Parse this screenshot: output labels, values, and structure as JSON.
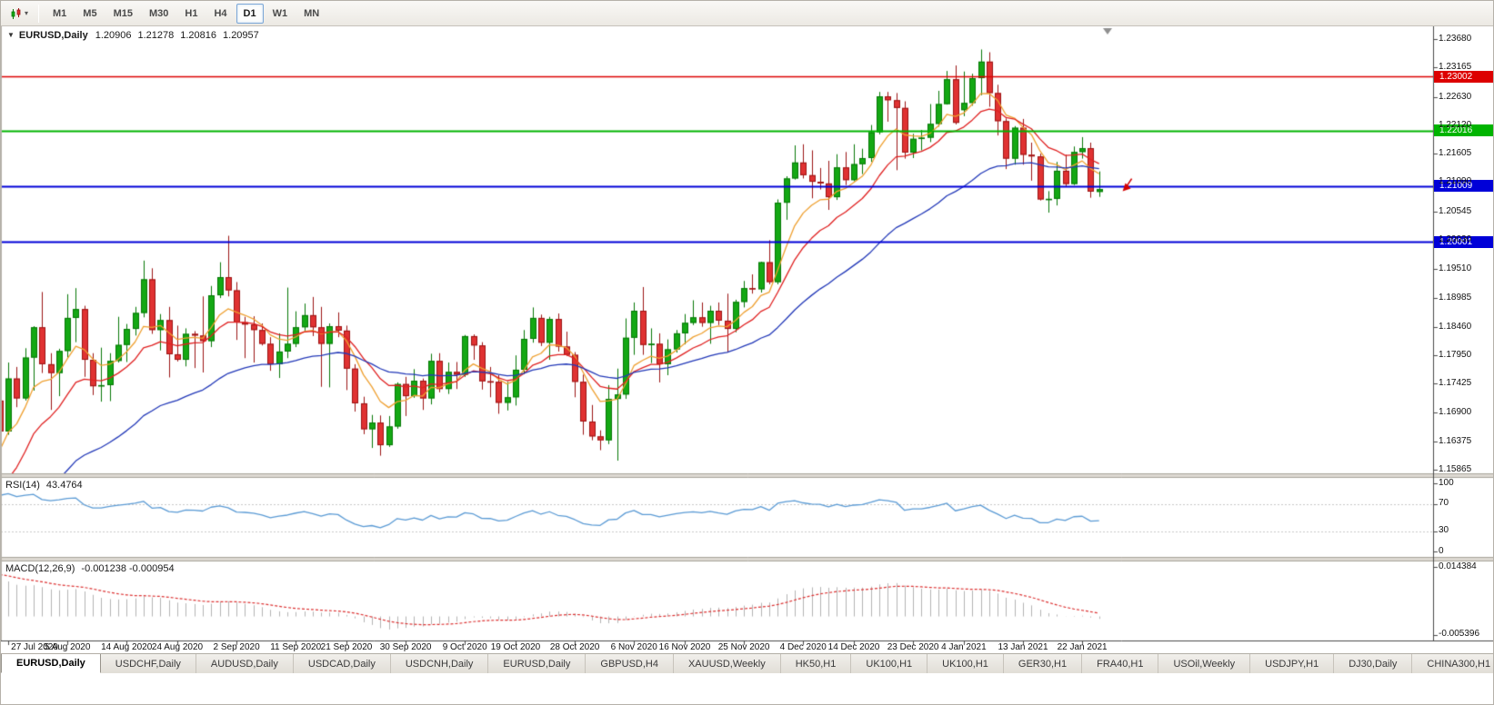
{
  "toolbar": {
    "timeframes": [
      {
        "label": "M1",
        "active": false
      },
      {
        "label": "M5",
        "active": false
      },
      {
        "label": "M15",
        "active": false
      },
      {
        "label": "M30",
        "active": false
      },
      {
        "label": "H1",
        "active": false
      },
      {
        "label": "H4",
        "active": false
      },
      {
        "label": "D1",
        "active": true
      },
      {
        "label": "W1",
        "active": false
      },
      {
        "label": "MN",
        "active": false
      }
    ]
  },
  "chart": {
    "title": {
      "symbol": "EURUSD,Daily",
      "open": "1.20906",
      "high": "1.21278",
      "low": "1.20816",
      "close": "1.20957"
    },
    "y_axis_ticks": [
      "1.23680",
      "1.23165",
      "1.22630",
      "1.22120",
      "1.21605",
      "1.21090",
      "1.20545",
      "1.20030",
      "1.19510",
      "1.18985",
      "1.18460",
      "1.17950",
      "1.17425",
      "1.16900",
      "1.16375",
      "1.15865"
    ],
    "h_lines": [
      {
        "price": 1.23002,
        "label": "1.23002",
        "color": "#dd0000",
        "width": 1.4
      },
      {
        "price": 1.22016,
        "label": "1.22016",
        "color": "#00b400",
        "width": 2
      },
      {
        "price": 1.21009,
        "label": "1.21009",
        "color": "#0000d8",
        "width": 2
      },
      {
        "price": 1.20001,
        "label": "1.20001",
        "color": "#0000d8",
        "width": 2
      }
    ],
    "x_axis_labels": [
      {
        "text": "27 Jul 2020",
        "index": 1
      },
      {
        "text": "5 Aug 2020",
        "index": 8
      },
      {
        "text": "14 Aug 2020",
        "index": 15
      },
      {
        "text": "24 Aug 2020",
        "index": 21
      },
      {
        "text": "2 Sep 2020",
        "index": 28
      },
      {
        "text": "11 Sep 2020",
        "index": 35
      },
      {
        "text": "21 Sep 2020",
        "index": 41
      },
      {
        "text": "30 Sep 2020",
        "index": 48
      },
      {
        "text": "9 Oct 2020",
        "index": 55
      },
      {
        "text": "19 Oct 2020",
        "index": 61
      },
      {
        "text": "28 Oct 2020",
        "index": 68
      },
      {
        "text": "6 Nov 2020",
        "index": 75
      },
      {
        "text": "16 Nov 2020",
        "index": 81
      },
      {
        "text": "25 Nov 2020",
        "index": 88
      },
      {
        "text": "4 Dec 2020",
        "index": 95
      },
      {
        "text": "14 Dec 2020",
        "index": 101
      },
      {
        "text": "23 Dec 2020",
        "index": 108
      },
      {
        "text": "4 Jan 2021",
        "index": 114
      },
      {
        "text": "13 Jan 2021",
        "index": 121
      },
      {
        "text": "22 Jan 2021",
        "index": 128
      }
    ]
  },
  "rsi_panel": {
    "name": "RSI(14)",
    "value": "43.4764",
    "line_color": "#5b9bd5",
    "ticks": [
      {
        "v": 100,
        "label": "100"
      },
      {
        "v": 70,
        "label": "70"
      },
      {
        "v": 30,
        "label": "30"
      },
      {
        "v": 0,
        "label": "0"
      }
    ]
  },
  "macd_panel": {
    "name": "MACD(12,26,9)",
    "value": "-0.001238 -0.000954",
    "top_label": "0.014384",
    "bottom_label": "-0.005396",
    "hist_color": "#b4b4b4",
    "signal_color": "#dd3333"
  },
  "tabs": [
    {
      "label": "EURUSD,Daily",
      "active": true
    },
    {
      "label": "USDCHF,Daily",
      "active": false
    },
    {
      "label": "AUDUSD,Daily",
      "active": false
    },
    {
      "label": "USDCAD,Daily",
      "active": false
    },
    {
      "label": "USDCNH,Daily",
      "active": false
    },
    {
      "label": "EURUSD,Daily",
      "active": false
    },
    {
      "label": "GBPUSD,H4",
      "active": false
    },
    {
      "label": "XAUUSD,Weekly",
      "active": false
    },
    {
      "label": "HK50,H1",
      "active": false
    },
    {
      "label": "UK100,H1",
      "active": false
    },
    {
      "label": "UK100,H1",
      "active": false
    },
    {
      "label": "GER30,H1",
      "active": false
    },
    {
      "label": "FRA40,H1",
      "active": false
    },
    {
      "label": "USOil,Weekly",
      "active": false
    },
    {
      "label": "USDJPY,H1",
      "active": false
    },
    {
      "label": "DJ30,Daily",
      "active": false
    },
    {
      "label": "CHINA300,H1",
      "active": false
    },
    {
      "label": "U",
      "active": false
    }
  ],
  "chart_data": {
    "type": "candlestick",
    "symbol": "EURUSD",
    "timeframe": "Daily",
    "y_range": [
      1.158,
      1.2391
    ],
    "colors": {
      "bull": "#14a814",
      "bull_border": "#067806",
      "bear": "#e03232",
      "bear_border": "#9c1414"
    },
    "candles": [
      [
        1.1712,
        1.172,
        1.1638,
        1.1656
      ],
      [
        1.1656,
        1.1781,
        1.165,
        1.1752
      ],
      [
        1.1752,
        1.1773,
        1.17,
        1.1716
      ],
      [
        1.1716,
        1.1807,
        1.1712,
        1.179
      ],
      [
        1.179,
        1.1847,
        1.173,
        1.1845
      ],
      [
        1.1845,
        1.1909,
        1.1762,
        1.1778
      ],
      [
        1.1778,
        1.1798,
        1.1695,
        1.1762
      ],
      [
        1.1762,
        1.1806,
        1.172,
        1.1802
      ],
      [
        1.1802,
        1.1905,
        1.179,
        1.1862
      ],
      [
        1.1862,
        1.1916,
        1.1818,
        1.1878
      ],
      [
        1.1878,
        1.1884,
        1.1755,
        1.1786
      ],
      [
        1.1786,
        1.1798,
        1.1722,
        1.1738
      ],
      [
        1.1738,
        1.1808,
        1.171,
        1.174
      ],
      [
        1.174,
        1.1798,
        1.1711,
        1.1784
      ],
      [
        1.1784,
        1.1864,
        1.1781,
        1.1813
      ],
      [
        1.1813,
        1.1851,
        1.1782,
        1.1842
      ],
      [
        1.1842,
        1.1882,
        1.183,
        1.1871
      ],
      [
        1.1871,
        1.1966,
        1.1863,
        1.1932
      ],
      [
        1.1932,
        1.1952,
        1.1833,
        1.184
      ],
      [
        1.184,
        1.1869,
        1.1803,
        1.1858
      ],
      [
        1.1858,
        1.1882,
        1.1754,
        1.1796
      ],
      [
        1.1796,
        1.1848,
        1.1783,
        1.1786
      ],
      [
        1.1786,
        1.1843,
        1.1774,
        1.1833
      ],
      [
        1.1833,
        1.1838,
        1.1771,
        1.183
      ],
      [
        1.183,
        1.1901,
        1.1763,
        1.182
      ],
      [
        1.182,
        1.192,
        1.1809,
        1.1903
      ],
      [
        1.1903,
        1.1963,
        1.1898,
        1.1936
      ],
      [
        1.1936,
        1.2011,
        1.1901,
        1.1912
      ],
      [
        1.1912,
        1.1927,
        1.1822,
        1.1854
      ],
      [
        1.1854,
        1.1864,
        1.1789,
        1.185
      ],
      [
        1.185,
        1.1865,
        1.1781,
        1.184
      ],
      [
        1.184,
        1.1852,
        1.1812,
        1.1815
      ],
      [
        1.1815,
        1.1827,
        1.1766,
        1.1778
      ],
      [
        1.1778,
        1.1834,
        1.1753,
        1.1801
      ],
      [
        1.1801,
        1.1917,
        1.1789,
        1.1815
      ],
      [
        1.1815,
        1.1874,
        1.1809,
        1.1845
      ],
      [
        1.1845,
        1.1888,
        1.1839,
        1.1867
      ],
      [
        1.1867,
        1.19,
        1.1829,
        1.1845
      ],
      [
        1.1845,
        1.1882,
        1.1737,
        1.1815
      ],
      [
        1.1815,
        1.1852,
        1.1736,
        1.1847
      ],
      [
        1.1847,
        1.1872,
        1.1827,
        1.1839
      ],
      [
        1.1839,
        1.1848,
        1.1731,
        1.177
      ],
      [
        1.177,
        1.1778,
        1.1692,
        1.1707
      ],
      [
        1.1707,
        1.1719,
        1.1651,
        1.166
      ],
      [
        1.166,
        1.1686,
        1.1626,
        1.1672
      ],
      [
        1.1672,
        1.1685,
        1.1612,
        1.1631
      ],
      [
        1.1631,
        1.1684,
        1.1628,
        1.1665
      ],
      [
        1.1665,
        1.1745,
        1.1661,
        1.1742
      ],
      [
        1.1742,
        1.1755,
        1.1684,
        1.172
      ],
      [
        1.172,
        1.1769,
        1.1717,
        1.1748
      ],
      [
        1.1748,
        1.1752,
        1.1695,
        1.1716
      ],
      [
        1.1716,
        1.1797,
        1.1705,
        1.1784
      ],
      [
        1.1784,
        1.1798,
        1.1727,
        1.1733
      ],
      [
        1.1733,
        1.1781,
        1.1724,
        1.1764
      ],
      [
        1.1764,
        1.1782,
        1.1733,
        1.1759
      ],
      [
        1.1759,
        1.1831,
        1.1755,
        1.1829
      ],
      [
        1.1829,
        1.1832,
        1.1786,
        1.1812
      ],
      [
        1.1812,
        1.1818,
        1.1732,
        1.1747
      ],
      [
        1.1747,
        1.1773,
        1.1718,
        1.1746
      ],
      [
        1.1746,
        1.1758,
        1.1688,
        1.1708
      ],
      [
        1.1708,
        1.1746,
        1.1694,
        1.1718
      ],
      [
        1.1718,
        1.1794,
        1.1703,
        1.1768
      ],
      [
        1.1768,
        1.184,
        1.176,
        1.1824
      ],
      [
        1.1824,
        1.1881,
        1.1817,
        1.1862
      ],
      [
        1.1862,
        1.1868,
        1.1811,
        1.1817
      ],
      [
        1.1817,
        1.1864,
        1.1786,
        1.186
      ],
      [
        1.186,
        1.187,
        1.1801,
        1.181
      ],
      [
        1.181,
        1.1837,
        1.1793,
        1.1795
      ],
      [
        1.1795,
        1.18,
        1.1718,
        1.1746
      ],
      [
        1.1746,
        1.1759,
        1.165,
        1.1674
      ],
      [
        1.1674,
        1.1704,
        1.164,
        1.1647
      ],
      [
        1.1647,
        1.1658,
        1.1622,
        1.164
      ],
      [
        1.164,
        1.174,
        1.1633,
        1.1715
      ],
      [
        1.1715,
        1.177,
        1.1603,
        1.1723
      ],
      [
        1.1723,
        1.1861,
        1.1715,
        1.1826
      ],
      [
        1.1826,
        1.189,
        1.1795,
        1.1875
      ],
      [
        1.1875,
        1.1918,
        1.1795,
        1.1813
      ],
      [
        1.1813,
        1.1843,
        1.178,
        1.1815
      ],
      [
        1.1815,
        1.1834,
        1.1745,
        1.1778
      ],
      [
        1.1778,
        1.1823,
        1.1758,
        1.1805
      ],
      [
        1.1805,
        1.184,
        1.1799,
        1.1834
      ],
      [
        1.1834,
        1.1869,
        1.1814,
        1.1853
      ],
      [
        1.1853,
        1.1894,
        1.1849,
        1.1863
      ],
      [
        1.1863,
        1.189,
        1.1846,
        1.1853
      ],
      [
        1.1853,
        1.1884,
        1.1815,
        1.1875
      ],
      [
        1.1875,
        1.189,
        1.1849,
        1.1857
      ],
      [
        1.1857,
        1.1906,
        1.18,
        1.1842
      ],
      [
        1.1842,
        1.1895,
        1.1836,
        1.1891
      ],
      [
        1.1891,
        1.1929,
        1.1881,
        1.1916
      ],
      [
        1.1916,
        1.1941,
        1.1906,
        1.1914
      ],
      [
        1.1914,
        1.1964,
        1.1908,
        1.1963
      ],
      [
        1.1963,
        1.2003,
        1.1923,
        1.1927
      ],
      [
        1.1927,
        1.2077,
        1.1923,
        1.2071
      ],
      [
        1.2071,
        1.2119,
        1.204,
        1.2115
      ],
      [
        1.2115,
        1.2175,
        1.2113,
        1.2144
      ],
      [
        1.2144,
        1.2177,
        1.2115,
        1.2121
      ],
      [
        1.2121,
        1.2166,
        1.2079,
        1.2109
      ],
      [
        1.2109,
        1.2134,
        1.2095,
        1.2106
      ],
      [
        1.2106,
        1.2147,
        1.2058,
        1.2081
      ],
      [
        1.2081,
        1.2159,
        1.2076,
        1.2135
      ],
      [
        1.2135,
        1.2163,
        1.2103,
        1.2112
      ],
      [
        1.2112,
        1.2177,
        1.211,
        1.2141
      ],
      [
        1.2141,
        1.2169,
        1.2123,
        1.2152
      ],
      [
        1.2152,
        1.2212,
        1.2145,
        1.2199
      ],
      [
        1.2199,
        1.2272,
        1.2195,
        1.2264
      ],
      [
        1.2264,
        1.2272,
        1.2218,
        1.2257
      ],
      [
        1.2257,
        1.227,
        1.213,
        1.2243
      ],
      [
        1.2243,
        1.2255,
        1.2151,
        1.2162
      ],
      [
        1.2162,
        1.2196,
        1.2152,
        1.2187
      ],
      [
        1.2187,
        1.2203,
        1.2166,
        1.2189
      ],
      [
        1.2189,
        1.225,
        1.2181,
        1.2214
      ],
      [
        1.2214,
        1.2274,
        1.2209,
        1.225
      ],
      [
        1.225,
        1.231,
        1.2249,
        1.2295
      ],
      [
        1.2295,
        1.232,
        1.2213,
        1.2216
      ],
      [
        1.2239,
        1.2309,
        1.2228,
        1.2252
      ],
      [
        1.2252,
        1.2305,
        1.2247,
        1.2297
      ],
      [
        1.2297,
        1.2349,
        1.2266,
        1.2327
      ],
      [
        1.2327,
        1.2344,
        1.2245,
        1.227
      ],
      [
        1.227,
        1.2285,
        1.2193,
        1.2219
      ],
      [
        1.2219,
        1.2224,
        1.2132,
        1.2151
      ],
      [
        1.2151,
        1.221,
        1.214,
        1.2207
      ],
      [
        1.2207,
        1.2223,
        1.214,
        1.2158
      ],
      [
        1.2158,
        1.218,
        1.2111,
        1.2155
      ],
      [
        1.2155,
        1.216,
        1.2075,
        1.2077
      ],
      [
        1.2077,
        1.2092,
        1.2053,
        1.2078
      ],
      [
        1.2078,
        1.2145,
        1.2066,
        1.2129
      ],
      [
        1.2129,
        1.2158,
        1.2101,
        1.2105
      ],
      [
        1.2105,
        1.2173,
        1.2103,
        1.2163
      ],
      [
        1.2163,
        1.219,
        1.2151,
        1.217
      ],
      [
        1.217,
        1.218,
        1.208,
        1.2091
      ],
      [
        1.20906,
        1.21278,
        1.20816,
        1.20957
      ]
    ],
    "moving_averages": [
      {
        "period": 7,
        "seed": 1.161,
        "color": "#efa030"
      },
      {
        "period": 13,
        "seed": 1.152,
        "color": "#e02020"
      },
      {
        "period": 34,
        "seed": 1.145,
        "color": "#2238b8"
      }
    ],
    "rsi_cfg": {
      "period": 14,
      "seed_gain": 0.0042,
      "seed_loss": 0.0009,
      "levels": [
        70,
        30
      ],
      "range": [
        0,
        100
      ]
    },
    "macd_cfg": {
      "fast": 12,
      "slow": 26,
      "signal": 9,
      "seed_fast": 1.1756,
      "seed_slow": 1.163,
      "seed_signal": 0.0125,
      "range": [
        -0.005396,
        0.014384
      ]
    },
    "sell_arrow": {
      "index": 133,
      "price": 1.2095,
      "color": "#d40000"
    }
  }
}
